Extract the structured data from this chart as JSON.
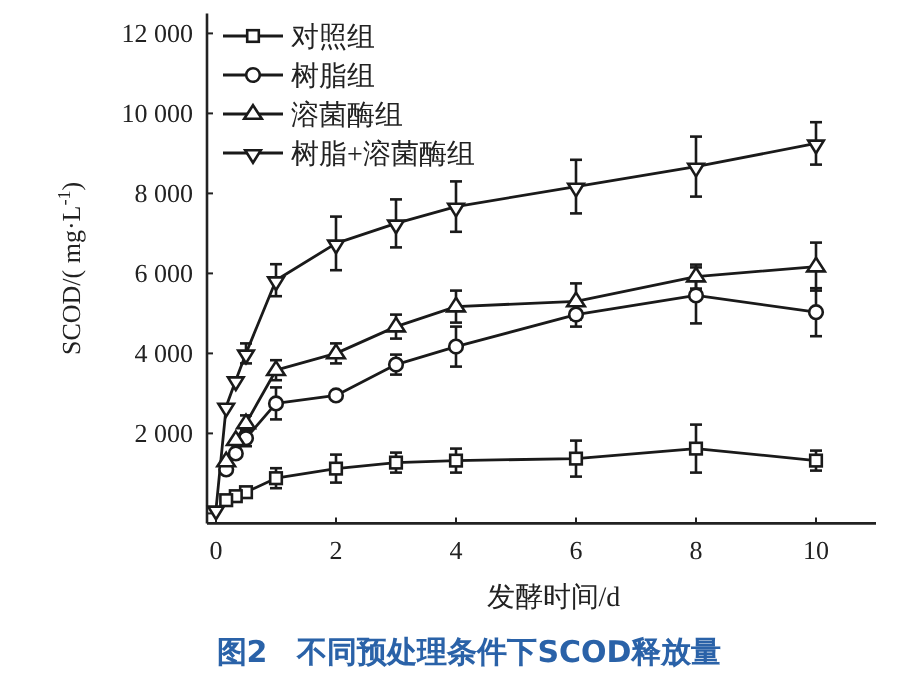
{
  "chart_data": {
    "type": "line",
    "title": "图2　不同预处理条件下SCOD释放量",
    "xlabel": "发酵时间/d",
    "ylabel": "SCOD/( mg·L$^{-1}$)",
    "x": [
      0,
      0.17,
      0.33,
      0.5,
      1,
      2,
      3,
      4,
      6,
      8,
      10
    ],
    "xlim": [
      -0.15,
      11
    ],
    "xticks": [
      0,
      2,
      4,
      6,
      8,
      10
    ],
    "ylim": [
      -250,
      12500
    ],
    "yticks": [
      {
        "value": 0,
        "label": null
      },
      {
        "value": 2000,
        "label": "2 000"
      },
      {
        "value": 4000,
        "label": "4 000"
      },
      {
        "value": 6000,
        "label": "6 000"
      },
      {
        "value": 8000,
        "label": "8 000"
      },
      {
        "value": 10000,
        "label": "10 000"
      },
      {
        "value": 12000,
        "label": "12 000"
      }
    ],
    "legend": "top left",
    "grid": false,
    "line_style": "solid",
    "series": [
      {
        "name": "对照组",
        "color": "#1a1a1a",
        "marker": "square",
        "values": [
          null,
          330,
          430,
          530,
          880,
          1120,
          1270,
          1320,
          1370,
          1620,
          1320
        ],
        "errors": [
          null,
          null,
          null,
          null,
          250,
          350,
          250,
          300,
          450,
          600,
          250
        ]
      },
      {
        "name": "树脂组",
        "color": "#1a1a1a",
        "marker": "circle",
        "values": [
          null,
          1100,
          1500,
          1880,
          2750,
          2950,
          3720,
          4170,
          4970,
          5450,
          5030
        ],
        "errors": [
          null,
          null,
          null,
          200,
          400,
          null,
          250,
          500,
          300,
          700,
          600
        ]
      },
      {
        "name": "溶菌酶组",
        "color": "#1a1a1a",
        "marker": "triangle",
        "values": [
          null,
          1300,
          1830,
          2250,
          3580,
          4000,
          4670,
          5170,
          5300,
          5920,
          6170
        ],
        "errors": [
          null,
          null,
          null,
          200,
          250,
          250,
          300,
          400,
          450,
          300,
          600
        ]
      },
      {
        "name": "树脂+溶菌酶组",
        "color": "#1a1a1a",
        "marker": "triangle-down",
        "values": [
          100,
          2670,
          3330,
          4000,
          5830,
          6750,
          7250,
          7670,
          8170,
          8670,
          9250
        ],
        "errors": [
          null,
          null,
          null,
          250,
          400,
          670,
          600,
          630,
          670,
          750,
          530
        ]
      }
    ]
  }
}
